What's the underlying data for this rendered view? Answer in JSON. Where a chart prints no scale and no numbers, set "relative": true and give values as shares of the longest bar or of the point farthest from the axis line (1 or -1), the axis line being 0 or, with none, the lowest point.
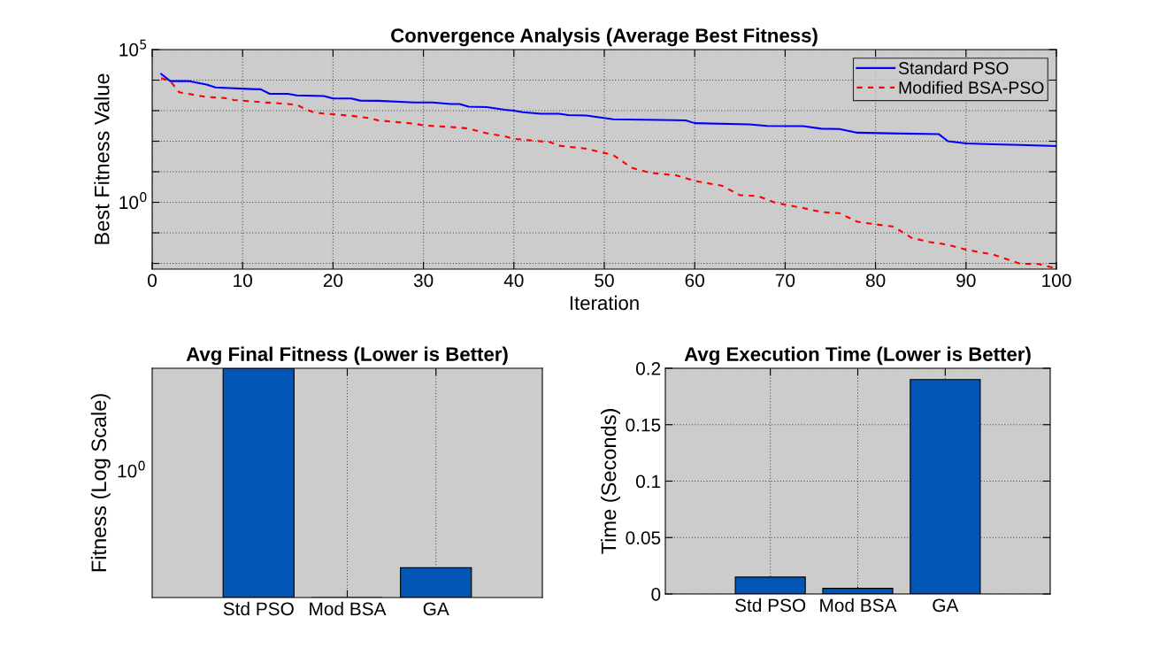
{
  "chart_data": [
    {
      "type": "line",
      "title": "Convergence Analysis (Average Best Fitness)",
      "xlabel": "Iteration",
      "ylabel": "Best Fitness Value",
      "log": "y",
      "grid": true,
      "legend": "top right",
      "xlim": [
        0,
        100
      ],
      "xticks": [
        0,
        10,
        20,
        30,
        40,
        50,
        60,
        70,
        80,
        90,
        100
      ],
      "ylim": [
        0.0065,
        100000
      ],
      "yticks": [
        {
          "value": 100000,
          "label": "10$^{5}$"
        },
        {
          "value": 10000,
          "label": null
        },
        {
          "value": 1000,
          "label": null
        },
        {
          "value": 100,
          "label": null
        },
        {
          "value": 10,
          "label": null
        },
        {
          "value": 1,
          "label": "10$^{0}$"
        },
        {
          "value": 0.1,
          "label": null
        },
        {
          "value": 0.01,
          "label": null
        }
      ],
      "series": [
        {
          "name": "Standard PSO",
          "color": "#0000ff",
          "line_style": "solid",
          "x": [
            1,
            2,
            4,
            6,
            7,
            11,
            12,
            13,
            15,
            16,
            19,
            20,
            22,
            23,
            25,
            29,
            31,
            33,
            34,
            35,
            37,
            39,
            40,
            41,
            43,
            45,
            46,
            48,
            51,
            59,
            60,
            66,
            68,
            72,
            74,
            76,
            78,
            83,
            87,
            88,
            90,
            93,
            96,
            100
          ],
          "values": [
            16000,
            9300,
            9300,
            7200,
            5750,
            5100,
            5000,
            3550,
            3550,
            3160,
            3000,
            2500,
            2500,
            2140,
            2100,
            1860,
            1860,
            1660,
            1660,
            1350,
            1300,
            1070,
            1000,
            890,
            790,
            790,
            720,
            690,
            525,
            480,
            390,
            355,
            316,
            310,
            257,
            250,
            190,
            178,
            170,
            100,
            85,
            79,
            75,
            69
          ]
        },
        {
          "name": "Modified BSA-PSO",
          "color": "#ff0000",
          "line_style": "dashed",
          "x": [
            1,
            2,
            3,
            4,
            6,
            8,
            9,
            12,
            15,
            16,
            17,
            18,
            22,
            24,
            25,
            29,
            30,
            34,
            35,
            37,
            39,
            40,
            44,
            45,
            48,
            51,
            52,
            53,
            55,
            58,
            60,
            63,
            65,
            67,
            69,
            72,
            74,
            76,
            78,
            80,
            82,
            84,
            86,
            88,
            90,
            93,
            96,
            98,
            100
          ],
          "values": [
            11700,
            9300,
            4000,
            3550,
            2800,
            2600,
            2240,
            1900,
            1660,
            1550,
            1100,
            850,
            680,
            575,
            480,
            375,
            330,
            280,
            257,
            182,
            145,
            120,
            93,
            71,
            57,
            35,
            22,
            13.5,
            9.3,
            7.6,
            5,
            3.5,
            1.7,
            1.6,
            0.95,
            0.65,
            0.48,
            0.44,
            0.23,
            0.19,
            0.16,
            0.068,
            0.05,
            0.041,
            0.028,
            0.0195,
            0.0098,
            0.0095,
            0.0068
          ]
        }
      ]
    },
    {
      "type": "bar",
      "title": "Avg Final Fitness (Lower is Better)",
      "ylabel": "Fitness (Log Scale)",
      "relative": true,
      "grid": "x",
      "categories": [
        "Std PSO",
        "Mod BSA",
        "GA"
      ],
      "values": [
        1,
        0,
        0.13
      ],
      "color": "#0055b5",
      "annotations": [
        "10$^{0}$"
      ]
    },
    {
      "type": "bar",
      "title": "Avg Execution Time (Lower is Better)",
      "ylabel": "Time (Seconds)",
      "grid": true,
      "categories": [
        "Std PSO",
        "Mod BSA",
        "GA"
      ],
      "values": [
        0.015,
        0.005,
        0.19
      ],
      "color": "#0055b5",
      "ylim": [
        0,
        0.2
      ],
      "yticks": [
        0,
        0.05,
        0.1,
        0.15,
        0.2
      ]
    }
  ]
}
